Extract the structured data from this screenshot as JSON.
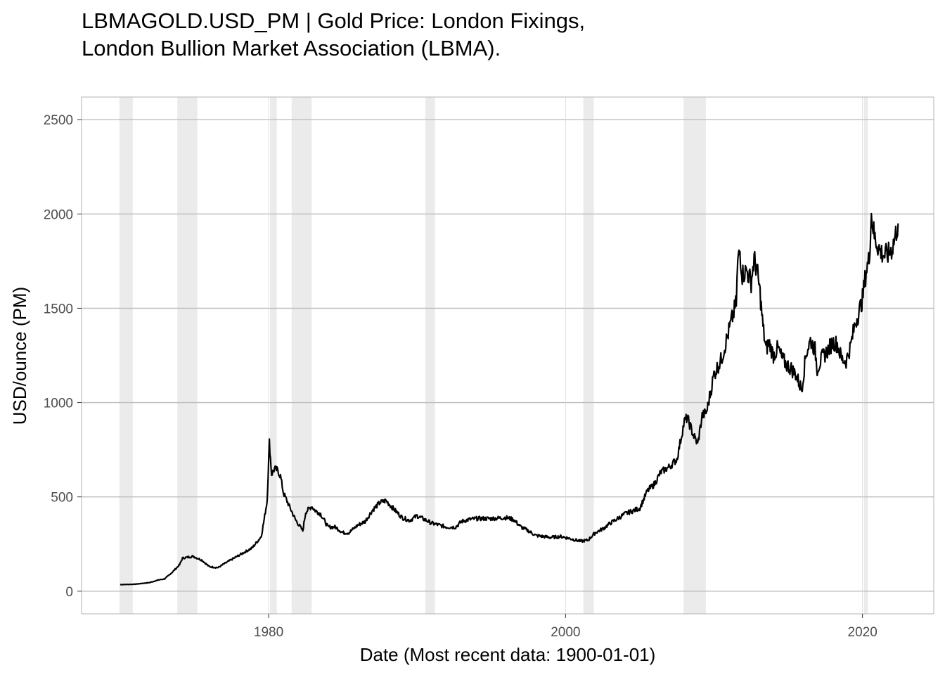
{
  "title_lines": [
    "LBMAGOLD.USD_PM | Gold Price: London Fixings,",
    "London Bullion Market Association (LBMA)."
  ],
  "chart_data": {
    "type": "line",
    "xlabel": "Date (Most recent data: 1900-01-01)",
    "ylabel": "USD/ounce (PM)",
    "xlim": [
      1967.4,
      2024.8
    ],
    "ylim": [
      -120,
      2620
    ],
    "x_ticks": [
      {
        "value": 1980,
        "label": "1980"
      },
      {
        "value": 2000,
        "label": "2000"
      },
      {
        "value": 2020,
        "label": "2020"
      }
    ],
    "y_ticks": [
      {
        "value": 0,
        "label": "0"
      },
      {
        "value": 500,
        "label": "500"
      },
      {
        "value": 1000,
        "label": "1000"
      },
      {
        "value": 1500,
        "label": "1500"
      },
      {
        "value": 2000,
        "label": "2000"
      },
      {
        "value": 2500,
        "label": "2500"
      }
    ],
    "grid": true,
    "recession_bands": [
      [
        1969.95,
        1970.85
      ],
      [
        1973.85,
        1975.2
      ],
      [
        1980.1,
        1980.55
      ],
      [
        1981.55,
        1982.9
      ],
      [
        1990.55,
        1991.2
      ],
      [
        2001.2,
        2001.9
      ],
      [
        2007.95,
        2009.45
      ],
      [
        2020.1,
        2020.35
      ]
    ],
    "series": [
      {
        "color": "#000000",
        "x": [
          1970.0,
          1971.0,
          1972.0,
          1972.6,
          1973.0,
          1973.5,
          1974.0,
          1974.2,
          1974.9,
          1975.5,
          1976.0,
          1976.6,
          1977.0,
          1978.0,
          1978.9,
          1979.5,
          1979.7,
          1979.9,
          1980.05,
          1980.2,
          1980.4,
          1980.6,
          1980.8,
          1981.0,
          1981.4,
          1981.8,
          1982.3,
          1982.5,
          1982.9,
          1983.1,
          1983.5,
          1984.0,
          1984.5,
          1985.0,
          1985.4,
          1986.0,
          1986.5,
          1987.0,
          1987.5,
          1987.9,
          1988.5,
          1989.0,
          1989.5,
          1990.0,
          1990.5,
          1991.0,
          1992.0,
          1992.6,
          1993.0,
          1993.5,
          1994.0,
          1995.0,
          1996.0,
          1996.5,
          1997.0,
          1997.5,
          1998.0,
          1998.5,
          1999.0,
          1999.7,
          2000.0,
          2000.5,
          2001.0,
          2001.5,
          2002.0,
          2002.5,
          2003.0,
          2004.0,
          2005.0,
          2005.5,
          2006.0,
          2006.4,
          2006.6,
          2007.0,
          2007.5,
          2008.0,
          2008.2,
          2008.6,
          2008.9,
          2009.2,
          2009.5,
          2009.9,
          2010.0,
          2010.5,
          2011.0,
          2011.5,
          2011.6,
          2011.75,
          2011.9,
          2012.2,
          2012.5,
          2012.7,
          2012.9,
          2013.1,
          2013.3,
          2013.5,
          2013.7,
          2014.0,
          2014.3,
          2014.6,
          2014.9,
          2015.2,
          2015.5,
          2015.9,
          2016.2,
          2016.5,
          2016.8,
          2016.95,
          2017.3,
          2017.6,
          2018.0,
          2018.3,
          2018.6,
          2018.9,
          2019.2,
          2019.5,
          2019.8,
          2020.0,
          2020.25,
          2020.45,
          2020.6,
          2020.8,
          2021.0,
          2021.2,
          2021.5,
          2021.8,
          2022.0,
          2022.2,
          2022.4
        ],
        "y": [
          35,
          37,
          46,
          60,
          65,
          100,
          140,
          175,
          185,
          165,
          130,
          125,
          145,
          190,
          230,
          290,
          380,
          480,
          790,
          620,
          650,
          640,
          610,
          520,
          450,
          380,
          320,
          420,
          450,
          430,
          410,
          340,
          340,
          310,
          310,
          350,
          370,
          430,
          470,
          480,
          430,
          390,
          375,
          400,
          380,
          360,
          340,
          340,
          370,
          380,
          385,
          385,
          390,
          380,
          340,
          320,
          295,
          290,
          285,
          290,
          285,
          275,
          265,
          270,
          310,
          330,
          360,
          410,
          440,
          530,
          570,
          630,
          640,
          660,
          700,
          900,
          920,
          830,
          780,
          930,
          950,
          1110,
          1150,
          1230,
          1380,
          1530,
          1750,
          1800,
          1680,
          1700,
          1640,
          1760,
          1700,
          1580,
          1400,
          1280,
          1320,
          1250,
          1290,
          1230,
          1200,
          1180,
          1150,
          1070,
          1260,
          1330,
          1280,
          1180,
          1240,
          1270,
          1320,
          1310,
          1230,
          1220,
          1300,
          1420,
          1490,
          1550,
          1700,
          1760,
          2000,
          1880,
          1840,
          1800,
          1780,
          1790,
          1820,
          1880,
          1950
        ]
      }
    ]
  }
}
